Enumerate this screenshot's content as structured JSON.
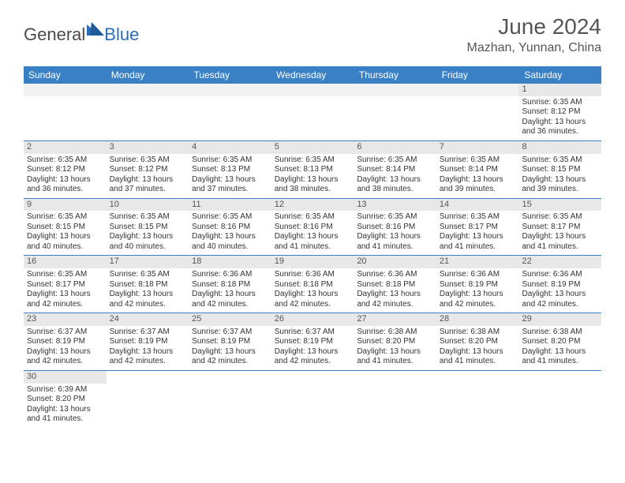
{
  "logo": {
    "part1": "General",
    "part2": "Blue"
  },
  "title": "June 2024",
  "location": "Mazhan, Yunnan, China",
  "colors": {
    "header_bg": "#3a80c4",
    "header_text": "#ffffff",
    "daynum_bg": "#e8e8e8",
    "row_border": "#3a80c4",
    "text": "#333333",
    "logo_gray": "#4a4a4a",
    "logo_blue": "#2a6db8"
  },
  "weekdays": [
    "Sunday",
    "Monday",
    "Tuesday",
    "Wednesday",
    "Thursday",
    "Friday",
    "Saturday"
  ],
  "weeks": [
    [
      null,
      null,
      null,
      null,
      null,
      null,
      {
        "n": "1",
        "sr": "Sunrise: 6:35 AM",
        "ss": "Sunset: 8:12 PM",
        "dl": "Daylight: 13 hours and 36 minutes."
      }
    ],
    [
      {
        "n": "2",
        "sr": "Sunrise: 6:35 AM",
        "ss": "Sunset: 8:12 PM",
        "dl": "Daylight: 13 hours and 36 minutes."
      },
      {
        "n": "3",
        "sr": "Sunrise: 6:35 AM",
        "ss": "Sunset: 8:12 PM",
        "dl": "Daylight: 13 hours and 37 minutes."
      },
      {
        "n": "4",
        "sr": "Sunrise: 6:35 AM",
        "ss": "Sunset: 8:13 PM",
        "dl": "Daylight: 13 hours and 37 minutes."
      },
      {
        "n": "5",
        "sr": "Sunrise: 6:35 AM",
        "ss": "Sunset: 8:13 PM",
        "dl": "Daylight: 13 hours and 38 minutes."
      },
      {
        "n": "6",
        "sr": "Sunrise: 6:35 AM",
        "ss": "Sunset: 8:14 PM",
        "dl": "Daylight: 13 hours and 38 minutes."
      },
      {
        "n": "7",
        "sr": "Sunrise: 6:35 AM",
        "ss": "Sunset: 8:14 PM",
        "dl": "Daylight: 13 hours and 39 minutes."
      },
      {
        "n": "8",
        "sr": "Sunrise: 6:35 AM",
        "ss": "Sunset: 8:15 PM",
        "dl": "Daylight: 13 hours and 39 minutes."
      }
    ],
    [
      {
        "n": "9",
        "sr": "Sunrise: 6:35 AM",
        "ss": "Sunset: 8:15 PM",
        "dl": "Daylight: 13 hours and 40 minutes."
      },
      {
        "n": "10",
        "sr": "Sunrise: 6:35 AM",
        "ss": "Sunset: 8:15 PM",
        "dl": "Daylight: 13 hours and 40 minutes."
      },
      {
        "n": "11",
        "sr": "Sunrise: 6:35 AM",
        "ss": "Sunset: 8:16 PM",
        "dl": "Daylight: 13 hours and 40 minutes."
      },
      {
        "n": "12",
        "sr": "Sunrise: 6:35 AM",
        "ss": "Sunset: 8:16 PM",
        "dl": "Daylight: 13 hours and 41 minutes."
      },
      {
        "n": "13",
        "sr": "Sunrise: 6:35 AM",
        "ss": "Sunset: 8:16 PM",
        "dl": "Daylight: 13 hours and 41 minutes."
      },
      {
        "n": "14",
        "sr": "Sunrise: 6:35 AM",
        "ss": "Sunset: 8:17 PM",
        "dl": "Daylight: 13 hours and 41 minutes."
      },
      {
        "n": "15",
        "sr": "Sunrise: 6:35 AM",
        "ss": "Sunset: 8:17 PM",
        "dl": "Daylight: 13 hours and 41 minutes."
      }
    ],
    [
      {
        "n": "16",
        "sr": "Sunrise: 6:35 AM",
        "ss": "Sunset: 8:17 PM",
        "dl": "Daylight: 13 hours and 42 minutes."
      },
      {
        "n": "17",
        "sr": "Sunrise: 6:35 AM",
        "ss": "Sunset: 8:18 PM",
        "dl": "Daylight: 13 hours and 42 minutes."
      },
      {
        "n": "18",
        "sr": "Sunrise: 6:36 AM",
        "ss": "Sunset: 8:18 PM",
        "dl": "Daylight: 13 hours and 42 minutes."
      },
      {
        "n": "19",
        "sr": "Sunrise: 6:36 AM",
        "ss": "Sunset: 8:18 PM",
        "dl": "Daylight: 13 hours and 42 minutes."
      },
      {
        "n": "20",
        "sr": "Sunrise: 6:36 AM",
        "ss": "Sunset: 8:18 PM",
        "dl": "Daylight: 13 hours and 42 minutes."
      },
      {
        "n": "21",
        "sr": "Sunrise: 6:36 AM",
        "ss": "Sunset: 8:19 PM",
        "dl": "Daylight: 13 hours and 42 minutes."
      },
      {
        "n": "22",
        "sr": "Sunrise: 6:36 AM",
        "ss": "Sunset: 8:19 PM",
        "dl": "Daylight: 13 hours and 42 minutes."
      }
    ],
    [
      {
        "n": "23",
        "sr": "Sunrise: 6:37 AM",
        "ss": "Sunset: 8:19 PM",
        "dl": "Daylight: 13 hours and 42 minutes."
      },
      {
        "n": "24",
        "sr": "Sunrise: 6:37 AM",
        "ss": "Sunset: 8:19 PM",
        "dl": "Daylight: 13 hours and 42 minutes."
      },
      {
        "n": "25",
        "sr": "Sunrise: 6:37 AM",
        "ss": "Sunset: 8:19 PM",
        "dl": "Daylight: 13 hours and 42 minutes."
      },
      {
        "n": "26",
        "sr": "Sunrise: 6:37 AM",
        "ss": "Sunset: 8:19 PM",
        "dl": "Daylight: 13 hours and 42 minutes."
      },
      {
        "n": "27",
        "sr": "Sunrise: 6:38 AM",
        "ss": "Sunset: 8:20 PM",
        "dl": "Daylight: 13 hours and 41 minutes."
      },
      {
        "n": "28",
        "sr": "Sunrise: 6:38 AM",
        "ss": "Sunset: 8:20 PM",
        "dl": "Daylight: 13 hours and 41 minutes."
      },
      {
        "n": "29",
        "sr": "Sunrise: 6:38 AM",
        "ss": "Sunset: 8:20 PM",
        "dl": "Daylight: 13 hours and 41 minutes."
      }
    ],
    [
      {
        "n": "30",
        "sr": "Sunrise: 6:39 AM",
        "ss": "Sunset: 8:20 PM",
        "dl": "Daylight: 13 hours and 41 minutes."
      },
      null,
      null,
      null,
      null,
      null,
      null
    ]
  ]
}
